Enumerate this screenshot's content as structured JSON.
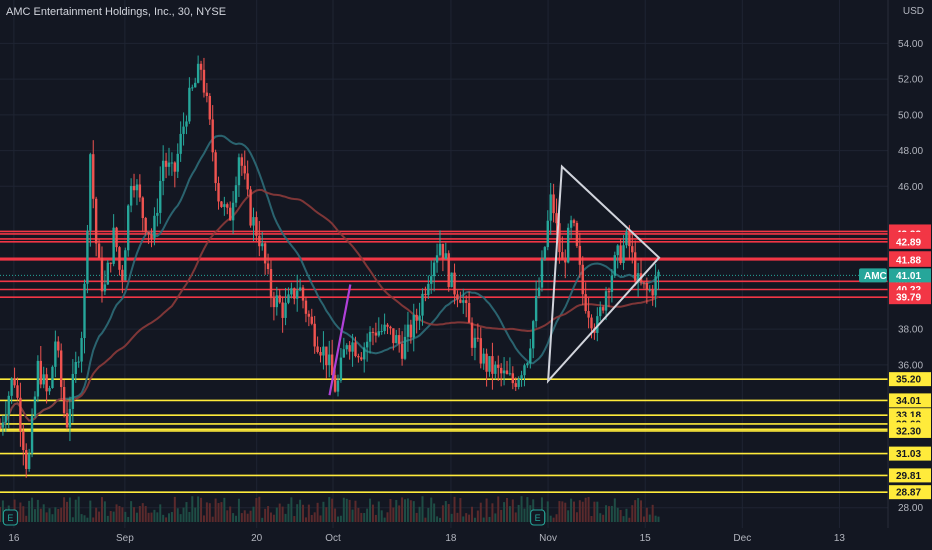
{
  "header": {
    "title": "AMC Entertainment Holdings, Inc., 30, NYSE",
    "currency": "USD"
  },
  "colors": {
    "background": "#131722",
    "grid": "#1f2433",
    "resistance_line": "#f23645",
    "support_line": "#ffeb3b",
    "triangle": "#d1d4dc",
    "purple_line": "#b040d8",
    "up_candle": "#26a69a",
    "down_candle": "#ef5350",
    "ma_fast": "#2e6b78",
    "ma_slow": "#8b3a3a",
    "price_tag": "#26a69a",
    "volume_up": "#1e4d45",
    "volume_down": "#5b2a2c"
  },
  "chart_data": {
    "type": "candlestick",
    "symbol": "AMC",
    "interval": "30",
    "exchange": "NYSE",
    "y_axis": {
      "ylim": [
        27.2,
        55.2
      ],
      "ticks": [
        "54.00",
        "52.00",
        "50.00",
        "48.00",
        "46.00",
        "38.00",
        "36.00",
        "28.00"
      ],
      "tick_values": [
        54,
        52,
        50,
        48,
        46,
        38,
        36,
        28
      ]
    },
    "x_axis": {
      "labels": [
        "16",
        "Sep",
        "20",
        "Oct",
        "18",
        "Nov",
        "15",
        "Dec",
        "13"
      ],
      "label_days": [
        0,
        16,
        35,
        46,
        63,
        77,
        91,
        105,
        119
      ],
      "domain_days": [
        -2,
        126
      ]
    },
    "resistance_levels": [
      "43.47",
      "43.33",
      "43.05",
      "42.89",
      "41.97",
      "41.88",
      "40.68",
      "40.22",
      "39.79"
    ],
    "support_levels": [
      "35.20",
      "34.01",
      "33.18",
      "32.69",
      "32.39",
      "32.30",
      "31.03",
      "29.81",
      "28.87"
    ],
    "current_price": {
      "label": "AMC",
      "value": "41.01"
    },
    "price_path": [
      [
        -2,
        32.5
      ],
      [
        0,
        35.5
      ],
      [
        2,
        30.0
      ],
      [
        3.5,
        36.0
      ],
      [
        5,
        34.0
      ],
      [
        6,
        37.5
      ],
      [
        7.5,
        32.5
      ],
      [
        9,
        36.0
      ],
      [
        10,
        38.5
      ],
      [
        11,
        48.0
      ],
      [
        12,
        42.0
      ],
      [
        13,
        40.0
      ],
      [
        14.5,
        43.5
      ],
      [
        15.5,
        40.5
      ],
      [
        17,
        47.0
      ],
      [
        18.5,
        44.5
      ],
      [
        20,
        43.0
      ],
      [
        21.5,
        47.5
      ],
      [
        23,
        46.5
      ],
      [
        25,
        50.5
      ],
      [
        27,
        52.7
      ],
      [
        28,
        50.0
      ],
      [
        29.5,
        45.5
      ],
      [
        31,
        44.0
      ],
      [
        32.5,
        48.0
      ],
      [
        34,
        44.5
      ],
      [
        35.5,
        43.0
      ],
      [
        37,
        40.0
      ],
      [
        39,
        39.0
      ],
      [
        41,
        40.5
      ],
      [
        43,
        38.0
      ],
      [
        45,
        36.5
      ],
      [
        46.5,
        34.5
      ],
      [
        48,
        37.5
      ],
      [
        50,
        36.8
      ],
      [
        52,
        38.0
      ],
      [
        54,
        37.8
      ],
      [
        56,
        37.0
      ],
      [
        58,
        38.5
      ],
      [
        60,
        41.5
      ],
      [
        61.5,
        43.0
      ],
      [
        63,
        40.5
      ],
      [
        64.5,
        40.0
      ],
      [
        66,
        37.5
      ],
      [
        68,
        36.0
      ],
      [
        70,
        35.5
      ],
      [
        72,
        35.0
      ],
      [
        74,
        36.5
      ],
      [
        76,
        41.0
      ],
      [
        77.5,
        45.5
      ],
      [
        79,
        41.5
      ],
      [
        80.5,
        44.0
      ],
      [
        82,
        40.0
      ],
      [
        84,
        38.0
      ],
      [
        85.5,
        40.5
      ],
      [
        87,
        42.0
      ],
      [
        88.5,
        43.0
      ],
      [
        90,
        40.5
      ],
      [
        91.5,
        40.0
      ],
      [
        93,
        41.0
      ]
    ],
    "overlays": {
      "triangle": [
        [
          77,
          35.1
        ],
        [
          79,
          47.1
        ],
        [
          93,
          42.0
        ]
      ],
      "purple_trendline": [
        [
          45.5,
          34.3
        ],
        [
          48.5,
          40.5
        ]
      ]
    }
  }
}
